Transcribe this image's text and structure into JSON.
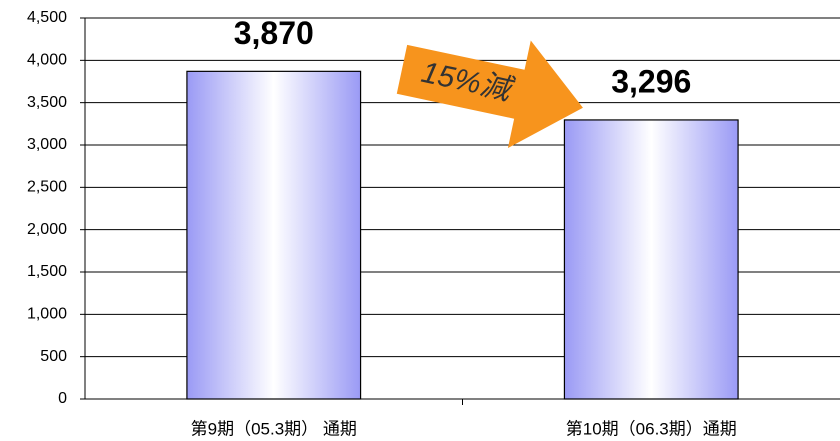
{
  "chart_data": {
    "type": "bar",
    "categories": [
      "第9期（05.3期） 通期",
      "第10期（06.3期）通期"
    ],
    "values": [
      3870,
      3296
    ],
    "value_labels": [
      "3,870",
      "3,296"
    ],
    "ylim": [
      0,
      4500
    ],
    "yticks": [
      0,
      500,
      {
        "value": 1000,
        "label": "1,000"
      },
      {
        "value": 1500,
        "label": "1,500"
      },
      {
        "value": 2000,
        "label": "2,000"
      },
      {
        "value": 2500,
        "label": "2,500"
      },
      {
        "value": 3000,
        "label": "3,000"
      },
      {
        "value": 3500,
        "label": "3,500"
      },
      {
        "value": 4000,
        "label": "4,000"
      },
      {
        "value": 4500,
        "label": "4,500"
      }
    ],
    "grid": true,
    "annotation": "15%減"
  }
}
